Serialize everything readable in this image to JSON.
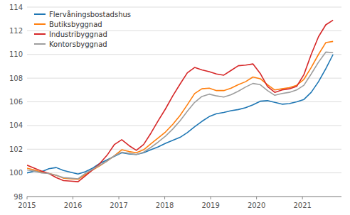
{
  "chart_data": {
    "type": "line",
    "x": [
      2015,
      2015.158738,
      2015.317476,
      2015.476214,
      2015.634952,
      2015.79369,
      2015.952429,
      2016.111167,
      2016.269905,
      2016.428643,
      2016.587381,
      2016.746119,
      2016.904857,
      2017.063595,
      2017.222333,
      2017.381071,
      2017.53981,
      2017.698548,
      2017.857286,
      2018.016024,
      2018.174762,
      2018.3335,
      2018.492238,
      2018.650976,
      2018.809714,
      2018.968452,
      2019.12719,
      2019.285929,
      2019.444667,
      2019.603405,
      2019.762143,
      2019.920881,
      2020.079619,
      2020.238357,
      2020.397095,
      2020.555833,
      2020.714571,
      2020.87331,
      2021.032048,
      2021.190786,
      2021.349524,
      2021.508262,
      2021.667
    ],
    "series": [
      {
        "name": "Flervåningsbostadshus",
        "color": "#1f77b4",
        "values": [
          100.0,
          100.15,
          100.1,
          100.35,
          100.45,
          100.2,
          100.05,
          99.9,
          100.1,
          100.4,
          100.8,
          101.1,
          101.4,
          101.7,
          101.6,
          101.55,
          101.7,
          101.95,
          102.2,
          102.5,
          102.75,
          103.0,
          103.4,
          103.9,
          104.35,
          104.75,
          105.0,
          105.1,
          105.25,
          105.35,
          105.5,
          105.75,
          106.05,
          106.1,
          105.95,
          105.8,
          105.85,
          106.0,
          106.2,
          106.8,
          107.7,
          108.8,
          110.0
        ]
      },
      {
        "name": "Butiksbyggnad",
        "color": "#ff7f0e",
        "values": [
          100.4,
          100.25,
          100.05,
          99.95,
          99.8,
          99.55,
          99.5,
          99.45,
          99.85,
          100.25,
          100.6,
          101.0,
          101.45,
          101.95,
          101.8,
          101.7,
          101.95,
          102.45,
          102.95,
          103.45,
          104.1,
          104.85,
          105.75,
          106.7,
          107.1,
          107.15,
          106.95,
          106.95,
          107.15,
          107.45,
          107.7,
          108.1,
          107.95,
          107.45,
          107.0,
          107.1,
          107.2,
          107.4,
          107.9,
          108.9,
          110.0,
          111.0,
          111.1
        ]
      },
      {
        "name": "Industribyggnad",
        "color": "#d62728",
        "values": [
          100.65,
          100.4,
          100.15,
          99.95,
          99.6,
          99.35,
          99.3,
          99.25,
          99.75,
          100.25,
          100.8,
          101.5,
          102.4,
          102.8,
          102.3,
          101.9,
          102.4,
          103.35,
          104.4,
          105.4,
          106.5,
          107.5,
          108.45,
          108.9,
          108.7,
          108.55,
          108.35,
          108.25,
          108.65,
          109.05,
          109.1,
          109.2,
          108.4,
          107.3,
          106.8,
          107.0,
          107.1,
          107.3,
          108.3,
          110.0,
          111.5,
          112.5,
          112.9
        ]
      },
      {
        "name": "Kontorsbyggnad",
        "color": "#9e9e9e",
        "values": [
          100.25,
          100.15,
          100.0,
          99.95,
          99.8,
          99.6,
          99.55,
          99.5,
          99.95,
          100.3,
          100.65,
          101.0,
          101.45,
          101.75,
          101.65,
          101.55,
          101.75,
          102.15,
          102.6,
          103.1,
          103.7,
          104.4,
          105.2,
          105.95,
          106.45,
          106.65,
          106.5,
          106.4,
          106.6,
          106.9,
          107.25,
          107.55,
          107.45,
          106.95,
          106.55,
          106.7,
          106.8,
          107.0,
          107.4,
          108.35,
          109.35,
          110.2,
          110.15
        ]
      }
    ],
    "xlim": [
      2015,
      2021.85
    ],
    "xticks": [
      2015,
      2016,
      2017,
      2018,
      2019,
      2020,
      2021
    ],
    "ylim": [
      98,
      114
    ],
    "yticks": [
      98,
      100,
      102,
      104,
      106,
      108,
      110,
      112,
      114
    ],
    "grid": true,
    "legend": "upper-left"
  }
}
